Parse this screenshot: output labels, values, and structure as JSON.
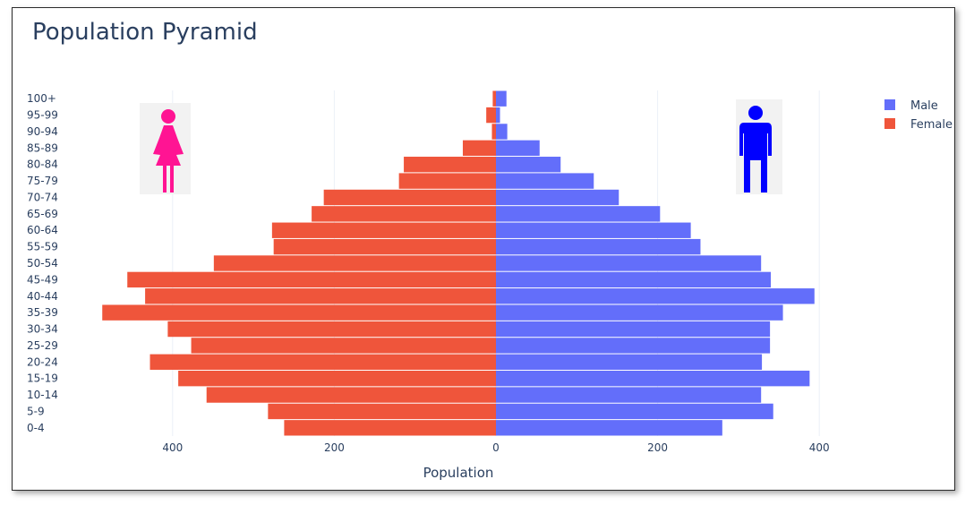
{
  "chart_data": {
    "type": "bar",
    "orientation": "horizontal",
    "title": "Population Pyramid",
    "xlabel": "Population",
    "ylabel": "",
    "xlim": [
      -520,
      440
    ],
    "xticks": [
      {
        "value": -400,
        "label": "400"
      },
      {
        "value": -200,
        "label": "200"
      },
      {
        "value": 0,
        "label": "0"
      },
      {
        "value": 200,
        "label": "200"
      },
      {
        "value": 400,
        "label": "400"
      }
    ],
    "grid": true,
    "legend_position": "top-right",
    "categories": [
      "0-4",
      "5-9",
      "10-14",
      "15-19",
      "20-24",
      "25-29",
      "30-34",
      "35-39",
      "40-44",
      "45-49",
      "50-54",
      "55-59",
      "60-64",
      "65-69",
      "70-74",
      "75-79",
      "80-84",
      "85-89",
      "90-94",
      "95-99",
      "100+"
    ],
    "series": [
      {
        "name": "Male",
        "color": "#636efa",
        "values": [
          280,
          343,
          328,
          388,
          329,
          339,
          339,
          355,
          394,
          340,
          328,
          253,
          241,
          203,
          152,
          121,
          80,
          54,
          14,
          5,
          13
        ]
      },
      {
        "name": "Female",
        "color": "#ef553b",
        "values": [
          262,
          282,
          358,
          393,
          428,
          377,
          406,
          487,
          434,
          456,
          349,
          275,
          277,
          228,
          213,
          120,
          114,
          41,
          5,
          12,
          4
        ]
      }
    ],
    "images": [
      {
        "name": "female-figure",
        "color": "#ff1493"
      },
      {
        "name": "male-figure",
        "color": "#0000ff"
      }
    ]
  }
}
